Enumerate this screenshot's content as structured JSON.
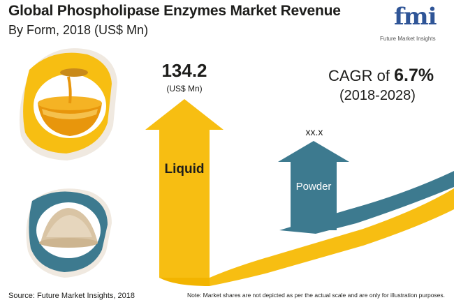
{
  "header": {
    "title": "Global Phospholipase Enzymes Market Revenue",
    "subtitle": "By Form, 2018 (US$ Mn)"
  },
  "logo": {
    "brand": "fmi",
    "tagline": "Future Market Insights"
  },
  "cagr": {
    "prefix": "CAGR of ",
    "value": "6.7%",
    "period": "(2018-2028)"
  },
  "footer": {
    "source": "Source: Future Market Insights, 2018",
    "note": "Note: Market shares are not depicted as per the actual scale and are only for illustration purposes."
  },
  "colors": {
    "liquid": "#f7be12",
    "powder": "#3d7a8f",
    "brand": "#2f5597"
  },
  "icons": [
    "honey-bowl-icon",
    "powder-pile-icon"
  ],
  "chart_data": {
    "type": "bar",
    "title": "Global Phospholipase Enzymes Market Revenue",
    "subtitle": "By Form, 2018 (US$ Mn)",
    "categories": [
      "Liquid",
      "Powder"
    ],
    "values": [
      134.2,
      null
    ],
    "value_labels": [
      "134.2",
      "xx.x"
    ],
    "unit": "(US$ Mn)"
  }
}
